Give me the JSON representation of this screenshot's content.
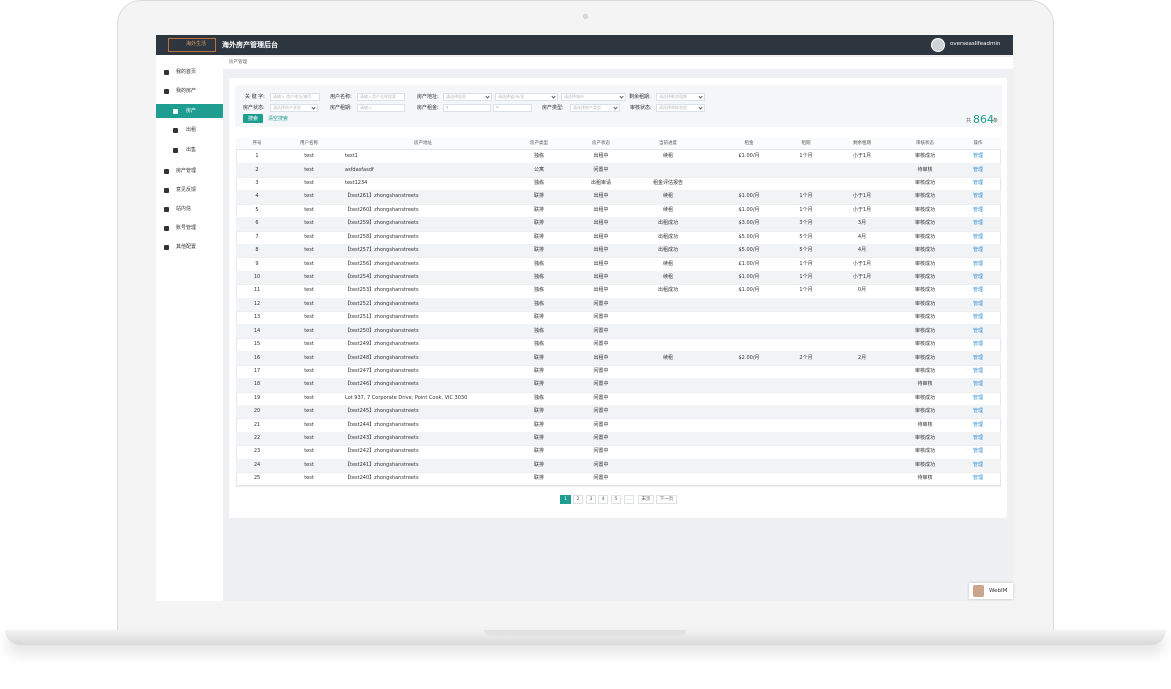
{
  "header": {
    "logo": "海外生活",
    "title": "海外房产管理后台",
    "user": "overseaslifeadmin"
  },
  "sidebar": [
    {
      "label": "我的首页"
    },
    {
      "label": "我的房产",
      "children": [
        "房产",
        "出租",
        "出售"
      ]
    },
    {
      "label": "房产管理"
    },
    {
      "label": "意见反馈"
    },
    {
      "label": "站内信"
    },
    {
      "label": "账号管理"
    },
    {
      "label": "其他配置"
    }
  ],
  "breadcrumb": "房产管理",
  "filters": [
    {
      "label": "关 键 字:",
      "inputs": [
        "请输入 房产地址/编号"
      ]
    },
    {
      "label": "用户名称:",
      "inputs": [
        "请输入用户名称搜索"
      ]
    },
    {
      "label": "房产地址:",
      "inputs": [
        "请选择国家",
        "请选择省/州/区",
        "请选择城市"
      ]
    },
    {
      "label": "剩余租期:",
      "inputs": [
        "请选择剩余租期"
      ]
    },
    {
      "label": "房产状态:",
      "inputs": [
        "请选择房产状态"
      ]
    },
    {
      "label": "房产租期:",
      "inputs": [
        "请输入"
      ]
    },
    {
      "label": "房产租金:",
      "inputs": [
        "¥",
        "¥"
      ]
    },
    {
      "label": "房产类型:",
      "inputs": [
        "请选择房产类型"
      ]
    },
    {
      "label": "审核状态:",
      "inputs": [
        "请选择审核状态"
      ]
    }
  ],
  "buttons": {
    "search": "搜索",
    "clear": "清空搜索"
  },
  "total": {
    "prefix": "共",
    "count": 864,
    "suffix": "条"
  },
  "table": {
    "headers": [
      "序号",
      "用户名称",
      "房产地址",
      "房产类型",
      "房产状态",
      "当前进度",
      "租金",
      "租期",
      "剩余租期",
      "审核状态",
      "操作"
    ],
    "rows": [
      [
        1,
        "test",
        "test1",
        "独栋",
        "出租中",
        "续租",
        "£1.00/月",
        "1个月",
        "小于1月",
        "审核成功",
        "管理"
      ],
      [
        2,
        "test",
        "asfdasfasdf",
        "公寓",
        "闲置中",
        null,
        null,
        null,
        null,
        "待审核",
        "管理"
      ],
      [
        3,
        "test",
        "test1234",
        "独栋",
        "出租审请",
        "租金评估报告",
        null,
        null,
        null,
        "审核成功",
        "管理"
      ],
      [
        4,
        "test",
        "【test261】zhongshanstreets",
        "联排",
        "出租中",
        "续租",
        "$1.00/月",
        "1个月",
        "小于1月",
        "审核成功",
        "管理"
      ],
      [
        5,
        "test",
        "【test260】zhongshanstreets",
        "联排",
        "出租中",
        "续租",
        "$1.00/月",
        "1个月",
        "小于1月",
        "审核成功",
        "管理"
      ],
      [
        6,
        "test",
        "【test259】zhongshanstreets",
        "联排",
        "出租中",
        "出租成功",
        "$3.00/月",
        "3个月",
        "3月",
        "审核成功",
        "管理"
      ],
      [
        7,
        "test",
        "【test258】zhongshanstreets",
        "联排",
        "出租中",
        "出租成功",
        "$5.00/月",
        "5个月",
        "4月",
        "审核成功",
        "管理"
      ],
      [
        8,
        "test",
        "【test257】zhongshanstreets",
        "联排",
        "出租中",
        "出租成功",
        "$5.00/月",
        "5个月",
        "4月",
        "审核成功",
        "管理"
      ],
      [
        9,
        "test",
        "【test256】zhongshanstreets",
        "独栋",
        "出租中",
        "续租",
        "£1.00/月",
        "1个月",
        "小于1月",
        "审核成功",
        "管理"
      ],
      [
        10,
        "test",
        "【test254】zhongshanstreets",
        "独栋",
        "出租中",
        "续租",
        "$1.00/月",
        "1个月",
        "小于1月",
        "审核成功",
        "管理"
      ],
      [
        11,
        "test",
        "【test253】zhongshanstreets",
        "独栋",
        "出租中",
        "出租成功",
        "$1.00/月",
        "1个月",
        "0月",
        "审核成功",
        "管理"
      ],
      [
        12,
        "test",
        "【test252】zhongshanstreets",
        "独栋",
        "闲置中",
        null,
        null,
        null,
        null,
        "审核成功",
        "管理"
      ],
      [
        13,
        "test",
        "【test251】zhongshanstreets",
        "联排",
        "闲置中",
        null,
        null,
        null,
        null,
        "审核成功",
        "管理"
      ],
      [
        14,
        "test",
        "【test250】zhongshanstreets",
        "独栋",
        "闲置中",
        null,
        null,
        null,
        null,
        "审核成功",
        "管理"
      ],
      [
        15,
        "test",
        "【test249】zhongshanstreets",
        "独栋",
        "闲置中",
        null,
        null,
        null,
        null,
        "审核成功",
        "管理"
      ],
      [
        16,
        "test",
        "【test248】zhongshanstreets",
        "联排",
        "出租中",
        "续租",
        "$2.00/月",
        "2个月",
        "2月",
        "审核成功",
        "管理"
      ],
      [
        17,
        "test",
        "【test247】zhongshanstreets",
        "联排",
        "闲置中",
        null,
        null,
        null,
        null,
        "审核成功",
        "管理"
      ],
      [
        18,
        "test",
        "【test246】zhongshanstreets",
        "联排",
        "闲置中",
        null,
        null,
        null,
        null,
        "待审核",
        "管理"
      ],
      [
        19,
        "test",
        "Lot 937, 7 Corporate Drive, Point Cook, VIC 3030",
        "独栋",
        "闲置中",
        null,
        null,
        null,
        null,
        "审核成功",
        "管理"
      ],
      [
        20,
        "test",
        "【test245】zhongshanstreets",
        "联排",
        "闲置中",
        null,
        null,
        null,
        null,
        "审核成功",
        "管理"
      ],
      [
        21,
        "test",
        "【test244】zhongshanstreets",
        "联排",
        "闲置中",
        null,
        null,
        null,
        null,
        "待审核",
        "管理"
      ],
      [
        22,
        "test",
        "【test243】zhongshanstreets",
        "联排",
        "闲置中",
        null,
        null,
        null,
        null,
        "审核成功",
        "管理"
      ],
      [
        23,
        "test",
        "【test242】zhongshanstreets",
        "联排",
        "闲置中",
        null,
        null,
        null,
        null,
        "审核成功",
        "管理"
      ],
      [
        24,
        "test",
        "【test241】zhongshanstreets",
        "联排",
        "闲置中",
        null,
        null,
        null,
        null,
        "审核成功",
        "管理"
      ],
      [
        25,
        "test",
        "【test240】zhongshanstreets",
        "联排",
        "闲置中",
        null,
        null,
        null,
        null,
        "待审核",
        "管理"
      ]
    ]
  },
  "pagination": [
    "1",
    "2",
    "3",
    "4",
    "5",
    "...",
    "末页",
    "下一页"
  ],
  "webim": "WebIM"
}
